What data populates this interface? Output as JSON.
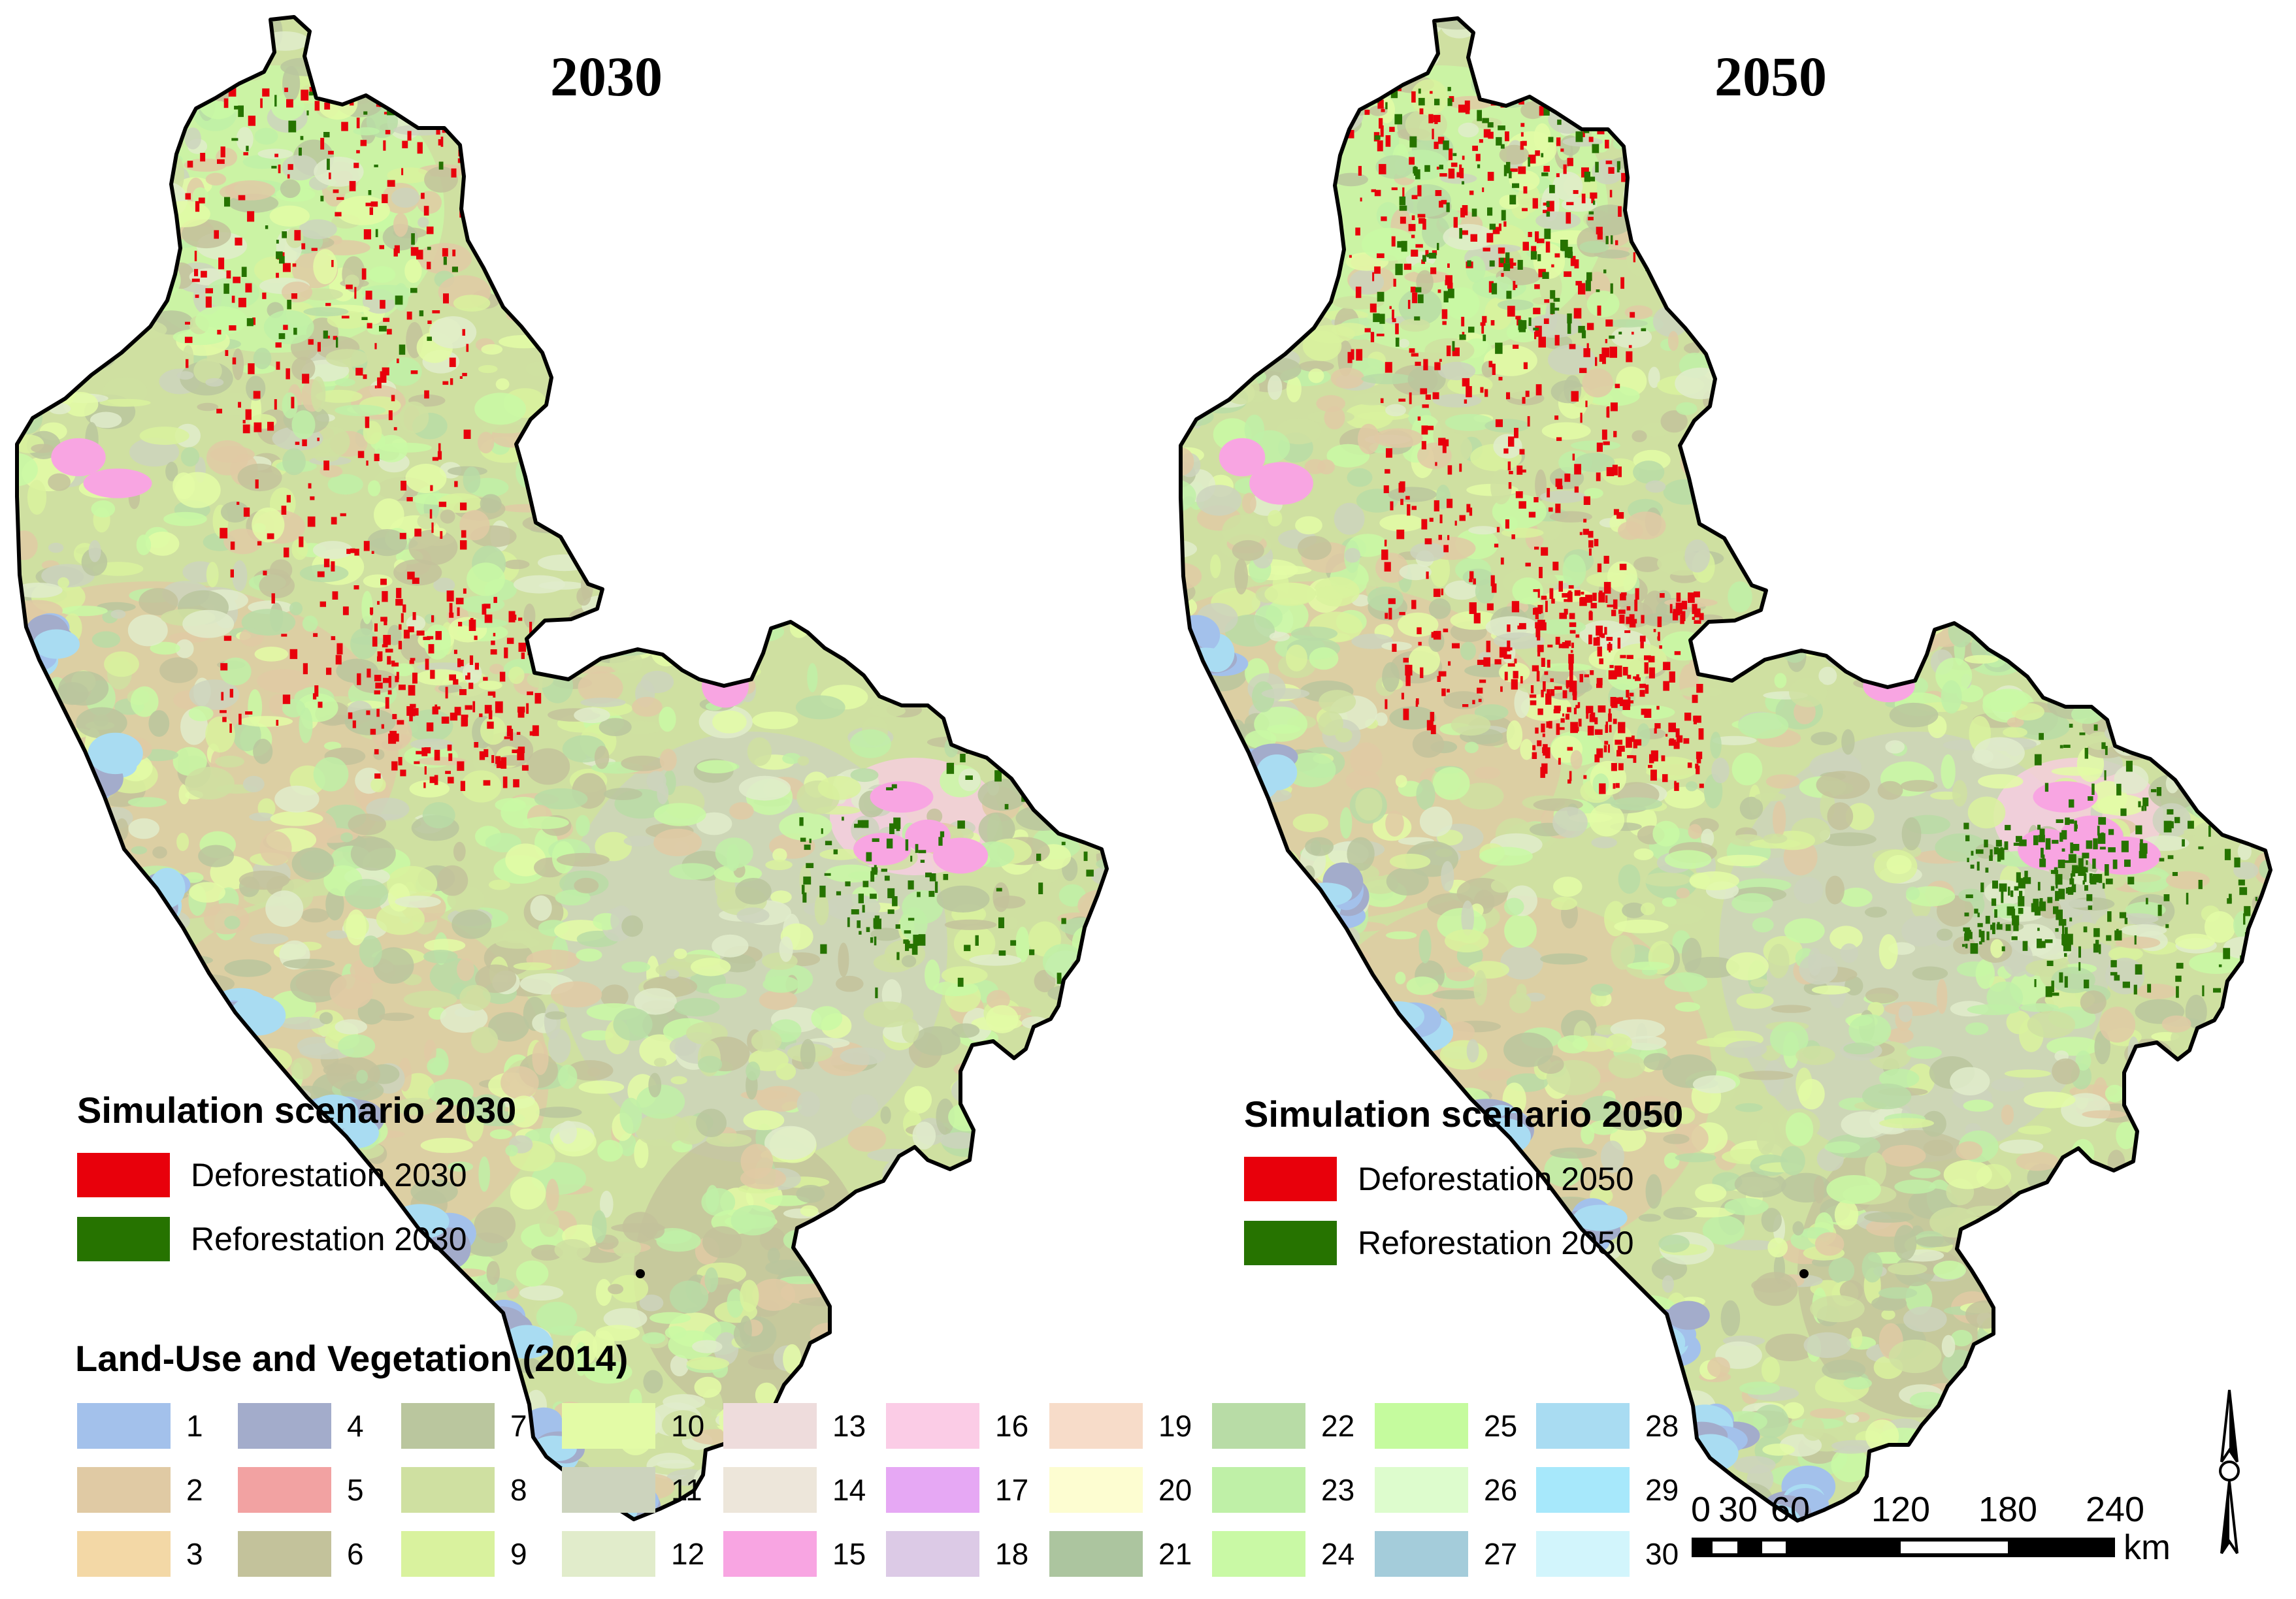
{
  "maps": [
    {
      "title": "2030"
    },
    {
      "title": "2050"
    }
  ],
  "scenario_legends": [
    {
      "title": "Simulation scenario 2030",
      "items": [
        {
          "label": "Deforestation 2030",
          "color": "#e8000b"
        },
        {
          "label": "Reforestation 2030",
          "color": "#267300"
        }
      ]
    },
    {
      "title": "Simulation scenario 2050",
      "items": [
        {
          "label": "Deforestation 2050",
          "color": "#e8000b"
        },
        {
          "label": "Reforestation 2050",
          "color": "#267300"
        }
      ]
    }
  ],
  "land_use_legend": {
    "title": "Land-Use and Vegetation (2014)",
    "classes": [
      {
        "code": "1",
        "color": "#a3c1eb"
      },
      {
        "code": "2",
        "color": "#e0caa4"
      },
      {
        "code": "3",
        "color": "#f3d8a6"
      },
      {
        "code": "4",
        "color": "#a3accb"
      },
      {
        "code": "5",
        "color": "#f2a2a2"
      },
      {
        "code": "6",
        "color": "#c3c29b"
      },
      {
        "code": "7",
        "color": "#bac69e"
      },
      {
        "code": "8",
        "color": "#cfe0a1"
      },
      {
        "code": "9",
        "color": "#d9f29e"
      },
      {
        "code": "10",
        "color": "#e3fba6"
      },
      {
        "code": "11",
        "color": "#ccd3bd"
      },
      {
        "code": "12",
        "color": "#e1eccb"
      },
      {
        "code": "13",
        "color": "#eedcdc"
      },
      {
        "code": "14",
        "color": "#ede6da"
      },
      {
        "code": "15",
        "color": "#f8a5e2"
      },
      {
        "code": "16",
        "color": "#fbcce6"
      },
      {
        "code": "17",
        "color": "#e6a8f4"
      },
      {
        "code": "18",
        "color": "#dccae6"
      },
      {
        "code": "19",
        "color": "#f7dcc9"
      },
      {
        "code": "20",
        "color": "#fdfdd1"
      },
      {
        "code": "21",
        "color": "#acc59f"
      },
      {
        "code": "22",
        "color": "#b8dca6"
      },
      {
        "code": "23",
        "color": "#bff0a7"
      },
      {
        "code": "24",
        "color": "#c9f9a5"
      },
      {
        "code": "25",
        "color": "#c5fb9e"
      },
      {
        "code": "26",
        "color": "#ddfccd"
      },
      {
        "code": "27",
        "color": "#a4ccda"
      },
      {
        "code": "28",
        "color": "#a9dcf2"
      },
      {
        "code": "29",
        "color": "#a7e8fb"
      },
      {
        "code": "30",
        "color": "#d2f5fc"
      }
    ]
  },
  "scale_bar": {
    "ticks": [
      "0",
      "30",
      "60",
      "120",
      "180",
      "240"
    ],
    "unit": "km"
  },
  "north_arrow": {
    "icon": "north-arrow-icon"
  }
}
